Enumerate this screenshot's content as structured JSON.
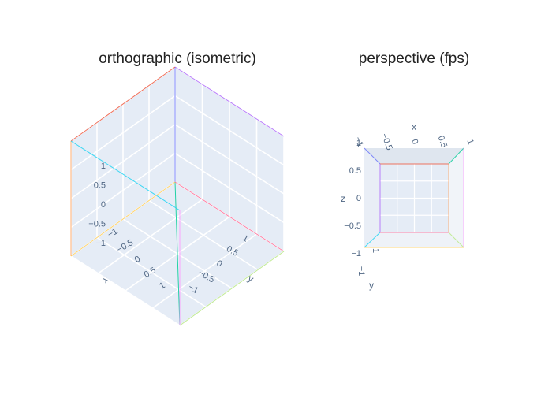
{
  "chart_data": [
    {
      "type": "scatter3d",
      "title": "orthographic (isometric)",
      "projection": "orthographic",
      "scene": {
        "xaxis": {
          "title": "x",
          "range": [
            -1,
            1
          ],
          "tickvals": [
            -1,
            -0.5,
            0,
            0.5,
            1
          ],
          "ticktext": [
            "−1",
            "−0.5",
            "0",
            "0.5",
            "1"
          ]
        },
        "yaxis": {
          "title": "y",
          "range": [
            -1,
            1
          ],
          "tickvals": [
            -1,
            -0.5,
            0,
            0.5,
            1
          ],
          "ticktext": [
            "−1",
            "−0.5",
            "0",
            "0.5",
            "1"
          ]
        },
        "zaxis": {
          "title": "",
          "range": [
            -1,
            1
          ],
          "tickvals": [
            -1,
            -0.5,
            0,
            0.5,
            1
          ],
          "ticktext": [
            "−1",
            "−0.5",
            "0",
            "0.5",
            "1"
          ]
        },
        "bgcolor": "#e5ecf6",
        "grid": true
      },
      "series": [
        {
          "color": "#636efa",
          "x": [
            -1,
            -1
          ],
          "y": [
            -1,
            -1
          ],
          "z": [
            -1,
            1
          ]
        },
        {
          "color": "#ef553b",
          "x": [
            -1,
            1
          ],
          "y": [
            -1,
            -1
          ],
          "z": [
            1,
            1
          ]
        },
        {
          "color": "#00cc96",
          "x": [
            -1,
            1
          ],
          "y": [
            -1,
            1
          ],
          "z": [
            -1,
            -1
          ]
        },
        {
          "color": "#ab63fa",
          "x": [
            -1,
            -1
          ],
          "y": [
            -1,
            1
          ],
          "z": [
            1,
            1
          ]
        },
        {
          "color": "#ffa15a",
          "x": [
            1,
            1
          ],
          "y": [
            -1,
            -1
          ],
          "z": [
            -1,
            1
          ]
        },
        {
          "color": "#19d3f3",
          "x": [
            1,
            1
          ],
          "y": [
            -1,
            1
          ],
          "z": [
            1,
            1
          ]
        },
        {
          "color": "#ff6692",
          "x": [
            -1,
            -1
          ],
          "y": [
            -1,
            1
          ],
          "z": [
            -1,
            -1
          ]
        },
        {
          "color": "#b6e880",
          "x": [
            -1,
            1
          ],
          "y": [
            1,
            1
          ],
          "z": [
            -1,
            -1
          ]
        },
        {
          "color": "#ff97ff",
          "x": [
            1,
            1
          ],
          "y": [
            1,
            1
          ],
          "z": [
            -1,
            1
          ]
        },
        {
          "color": "#fecb52",
          "x": [
            -1,
            1
          ],
          "y": [
            -1,
            -1
          ],
          "z": [
            -1,
            -1
          ]
        }
      ]
    },
    {
      "type": "scatter3d",
      "title": "perspective (fps)",
      "projection": "perspective",
      "scene": {
        "xaxis": {
          "title": "x",
          "range": [
            -1,
            1
          ],
          "tickvals": [
            -1,
            -0.5,
            0,
            0.5,
            1
          ],
          "ticktext": [
            "−1",
            "−0.5",
            "0",
            "0.5",
            "1"
          ]
        },
        "yaxis": {
          "title": "y",
          "range": [
            -1,
            1
          ],
          "tickvals": [
            -1,
            1
          ],
          "ticktext": [
            "−1",
            "1"
          ]
        },
        "zaxis": {
          "title": "z",
          "range": [
            -1,
            1
          ],
          "tickvals": [
            -1,
            -0.5,
            0,
            0.5,
            1
          ],
          "ticktext": [
            "−1",
            "−0.5",
            "0",
            "0.5",
            "1"
          ]
        },
        "bgcolor": "#e5ecf6",
        "grid": true
      },
      "series": [
        {
          "color": "#636efa",
          "x": [
            -1,
            -1
          ],
          "y": [
            -1,
            -1
          ],
          "z": [
            -1,
            1
          ]
        },
        {
          "color": "#ef553b",
          "x": [
            -1,
            1
          ],
          "y": [
            -1,
            -1
          ],
          "z": [
            1,
            1
          ]
        },
        {
          "color": "#00cc96",
          "x": [
            -1,
            1
          ],
          "y": [
            -1,
            1
          ],
          "z": [
            -1,
            -1
          ]
        },
        {
          "color": "#ab63fa",
          "x": [
            -1,
            -1
          ],
          "y": [
            -1,
            1
          ],
          "z": [
            1,
            1
          ]
        },
        {
          "color": "#ffa15a",
          "x": [
            1,
            1
          ],
          "y": [
            -1,
            -1
          ],
          "z": [
            -1,
            1
          ]
        },
        {
          "color": "#19d3f3",
          "x": [
            1,
            1
          ],
          "y": [
            -1,
            1
          ],
          "z": [
            1,
            1
          ]
        },
        {
          "color": "#ff6692",
          "x": [
            -1,
            -1
          ],
          "y": [
            -1,
            1
          ],
          "z": [
            -1,
            -1
          ]
        },
        {
          "color": "#b6e880",
          "x": [
            -1,
            1
          ],
          "y": [
            1,
            1
          ],
          "z": [
            -1,
            -1
          ]
        },
        {
          "color": "#ff97ff",
          "x": [
            1,
            1
          ],
          "y": [
            1,
            1
          ],
          "z": [
            -1,
            1
          ]
        },
        {
          "color": "#fecb52",
          "x": [
            -1,
            1
          ],
          "y": [
            -1,
            -1
          ],
          "z": [
            -1,
            -1
          ]
        }
      ]
    }
  ]
}
